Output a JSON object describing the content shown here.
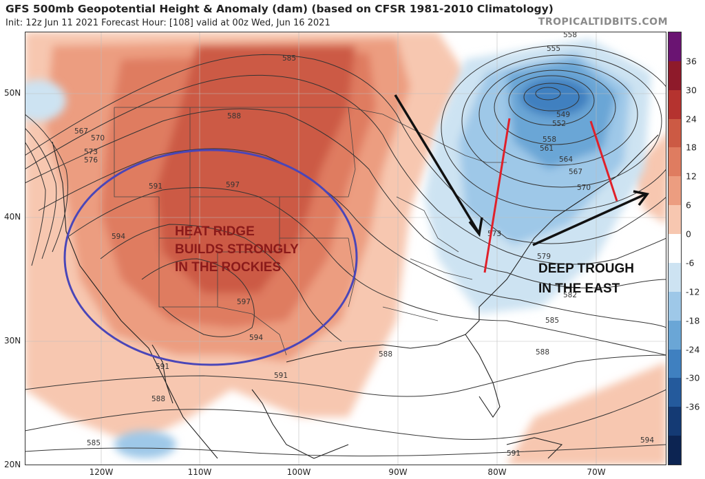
{
  "header": {
    "title": "GFS 500mb Geopotential Height & Anomaly (dam) (based on CFSR 1981-2010 Climatology)",
    "subtitle": "Init: 12z Jun 11 2021   Forecast Hour: [108]   valid at 00z Wed, Jun 16 2021",
    "brand": "TROPICALTIDBITS.COM"
  },
  "axes": {
    "lat_labels": [
      "50N",
      "40N",
      "30N",
      "20N"
    ],
    "lon_labels": [
      "120W",
      "110W",
      "100W",
      "90W",
      "80W",
      "70W"
    ]
  },
  "colorbar": {
    "labels": [
      "36",
      "30",
      "24",
      "18",
      "12",
      "6",
      "0",
      "-6",
      "-12",
      "-18",
      "-24",
      "-30",
      "-36"
    ],
    "colors": [
      "#6a1472",
      "#8e1a2a",
      "#b5332f",
      "#cc5a44",
      "#df7c60",
      "#ec9d80",
      "#f7c7b0",
      "#ffffff",
      "#cde3f2",
      "#9ec8e8",
      "#6aa6d6",
      "#3f80c0",
      "#245a9c",
      "#143a74",
      "#0c2452"
    ]
  },
  "contour_labels": {
    "c585a": "585",
    "c588a": "588",
    "c591a": "591",
    "c597a": "597",
    "c594a": "594",
    "c597b": "597",
    "c594b": "594",
    "c591b": "591",
    "c588b": "588",
    "c585b": "585",
    "c567": "567",
    "c570": "570",
    "c573": "573",
    "c576": "576",
    "c558a": "558",
    "c555": "555",
    "c549": "549",
    "c552": "552",
    "c558b": "558",
    "c561": "561",
    "c564": "564",
    "c567b": "567",
    "c570b": "570",
    "c573b": "573",
    "c579": "579",
    "c582": "582",
    "c585c": "585",
    "c588c": "588",
    "c591c": "591",
    "c594c": "594",
    "c588d": "588",
    "c591d": "591"
  },
  "annotations": {
    "heat_line1": "HEAT RIDGE",
    "heat_line2": "BUILDS STRONGLY",
    "heat_line3": "IN THE ROCKIES",
    "trough_line1": "DEEP TROUGH",
    "trough_line2": "IN THE EAST"
  }
}
